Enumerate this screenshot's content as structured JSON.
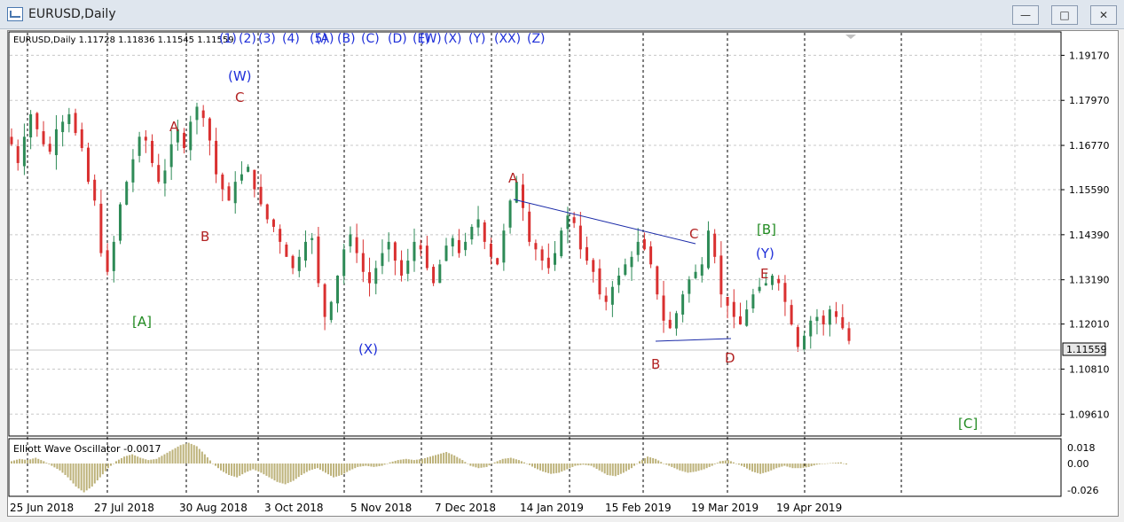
{
  "window": {
    "title": "EURUSD,Daily"
  },
  "header": {
    "symbol_info": "EURUSD,Daily  1.11728 1.11836 1.11545 1.11559"
  },
  "wave_labels_toolbar": [
    "(1)",
    "(2)",
    "(3)",
    "(4)",
    "(5)",
    "(A)",
    "(B)",
    "(C)",
    "(D)",
    "(E)",
    "(W)",
    "(X)",
    "(Y)",
    "(XX)",
    "(Z)"
  ],
  "oscillator": {
    "title": "Elliott Wave Oscillator -0.0017",
    "ticks": [
      "0.018",
      "0.00",
      "-0.026"
    ]
  },
  "price_badge": "1.11559",
  "colors": {
    "bull": "#2e8b57",
    "bear": "#d93030",
    "wave_red": "#b22222",
    "wave_blue": "#1f2fd8",
    "wave_green": "#228b22",
    "histogram": "#bdb27a",
    "trendline": "#1a2aa8"
  },
  "annotations": {
    "A1": "A",
    "B1": "B",
    "C1": "C",
    "W": "(W)",
    "A_green": "[A]",
    "X": "(X)",
    "A2": "A",
    "C2": "C",
    "B2": "B",
    "D2": "D",
    "B_green": "[B]",
    "Y": "(Y)",
    "E2": "E",
    "C_green": "[C]"
  },
  "chart_data": {
    "type": "candlestick",
    "symbol": "EURUSD",
    "timeframe": "Daily",
    "last": {
      "open": 1.11728,
      "high": 1.11836,
      "low": 1.11545,
      "close": 1.11559
    },
    "y_ticks": [
      1.1917,
      1.1797,
      1.1677,
      1.1559,
      1.1439,
      1.1319,
      1.1201,
      1.1081,
      1.0961
    ],
    "x_ticks": [
      "25 Jun 2018",
      "27 Jul 2018",
      "30 Aug 2018",
      "3 Oct 2018",
      "5 Nov 2018",
      "7 Dec 2018",
      "14 Jan 2019",
      "15 Feb 2019",
      "19 Mar 2019",
      "19 Apr 2019"
    ],
    "ylim": [
      1.0905,
      1.1977
    ],
    "close_path": [
      1.168,
      1.163,
      1.17,
      1.176,
      1.172,
      1.168,
      1.166,
      1.172,
      1.174,
      1.176,
      1.171,
      1.167,
      1.158,
      1.153,
      1.139,
      1.134,
      1.142,
      1.152,
      1.158,
      1.164,
      1.17,
      1.169,
      1.163,
      1.158,
      1.161,
      1.168,
      1.172,
      1.167,
      1.174,
      1.178,
      1.175,
      1.169,
      1.16,
      1.156,
      1.153,
      1.158,
      1.16,
      1.162,
      1.156,
      1.152,
      1.148,
      1.146,
      1.142,
      1.138,
      1.135,
      1.138,
      1.142,
      1.143,
      1.131,
      1.122,
      1.126,
      1.133,
      1.14,
      1.144,
      1.139,
      1.134,
      1.131,
      1.135,
      1.139,
      1.142,
      1.137,
      1.133,
      1.137,
      1.142,
      1.14,
      1.135,
      1.131,
      1.136,
      1.141,
      1.143,
      1.139,
      1.142,
      1.146,
      1.148,
      1.142,
      1.138,
      1.136,
      1.145,
      1.153,
      1.158,
      1.151,
      1.142,
      1.14,
      1.137,
      1.135,
      1.139,
      1.145,
      1.149,
      1.147,
      1.14,
      1.137,
      1.134,
      1.128,
      1.126,
      1.13,
      1.133,
      1.136,
      1.138,
      1.142,
      1.14,
      1.136,
      1.128,
      1.121,
      1.119,
      1.123,
      1.128,
      1.132,
      1.134,
      1.136,
      1.145,
      1.138,
      1.128,
      1.125,
      1.122,
      1.12,
      1.124,
      1.128,
      1.13,
      1.131,
      1.133,
      1.131,
      1.126,
      1.12,
      1.114,
      1.117,
      1.121,
      1.122,
      1.12,
      1.124,
      1.122,
      1.119,
      1.1156
    ],
    "oscillator_path": [
      0.002,
      0.004,
      0.003,
      0.005,
      0.002,
      -0.002,
      -0.006,
      -0.012,
      -0.02,
      -0.025,
      -0.02,
      -0.012,
      -0.004,
      0.002,
      0.006,
      0.008,
      0.005,
      0.003,
      0.004,
      0.008,
      0.012,
      0.016,
      0.018,
      0.015,
      0.008,
      0,
      -0.006,
      -0.01,
      -0.012,
      -0.008,
      -0.005,
      -0.008,
      -0.012,
      -0.016,
      -0.018,
      -0.015,
      -0.01,
      -0.006,
      -0.004,
      -0.008,
      -0.012,
      -0.01,
      -0.006,
      -0.003,
      -0.002,
      -0.003,
      -0.002,
      0.001,
      0.003,
      0.004,
      0.003,
      0.004,
      0.006,
      0.008,
      0.01,
      0.007,
      0.003,
      -0.002,
      -0.004,
      -0.003,
      0.001,
      0.004,
      0.005,
      0.003,
      0,
      -0.004,
      -0.007,
      -0.009,
      -0.008,
      -0.005,
      -0.002,
      -0.001,
      -0.002,
      -0.006,
      -0.01,
      -0.011,
      -0.008,
      -0.004,
      0.002,
      0.006,
      0.004,
      0,
      -0.003,
      -0.006,
      -0.008,
      -0.007,
      -0.005,
      -0.002,
      0.002,
      0.003,
      0,
      -0.003,
      -0.007,
      -0.009,
      -0.007,
      -0.004,
      -0.002,
      -0.004,
      -0.004,
      -0.003,
      -0.001,
      0,
      0.0005,
      0.001,
      -0.0017
    ]
  }
}
